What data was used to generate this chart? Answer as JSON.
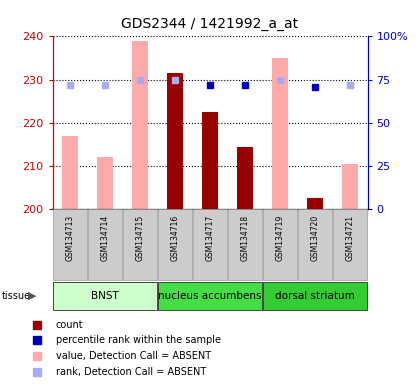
{
  "title": "GDS2344 / 1421992_a_at",
  "samples": [
    "GSM134713",
    "GSM134714",
    "GSM134715",
    "GSM134716",
    "GSM134717",
    "GSM134718",
    "GSM134719",
    "GSM134720",
    "GSM134721"
  ],
  "values_absent": [
    217.0,
    212.0,
    239.0,
    null,
    null,
    null,
    235.0,
    null,
    210.5
  ],
  "counts": [
    null,
    null,
    null,
    231.5,
    222.5,
    214.5,
    null,
    202.5,
    null
  ],
  "pct_ranks_absent": [
    72,
    72,
    75,
    75,
    null,
    null,
    75,
    null,
    72
  ],
  "pct_ranks_present": [
    null,
    null,
    null,
    null,
    72,
    72,
    null,
    71,
    null
  ],
  "tissue_groups": [
    {
      "label": "BNST",
      "start": 0,
      "end": 3,
      "color": "#ccffcc"
    },
    {
      "label": "nucleus accumbens",
      "start": 3,
      "end": 6,
      "color": "#44dd44"
    },
    {
      "label": "dorsal striatum",
      "start": 6,
      "end": 9,
      "color": "#33cc33"
    }
  ],
  "ylim_left": [
    200,
    240
  ],
  "ylim_right": [
    0,
    100
  ],
  "yticks_left": [
    200,
    210,
    220,
    230,
    240
  ],
  "yticks_right": [
    0,
    25,
    50,
    75,
    100
  ],
  "absent_bar_color": "#ffaaaa",
  "count_bar_color": "#990000",
  "rank_absent_color": "#aaaaee",
  "rank_present_color": "#0000bb",
  "left_axis_color": "#cc0000",
  "right_axis_color": "#0000cc"
}
